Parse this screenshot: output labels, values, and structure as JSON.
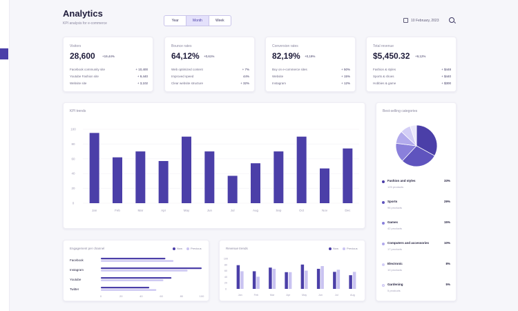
{
  "header": {
    "title": "Analytics",
    "subtitle": "KPI analysis for e-commerce",
    "periods": [
      "Year",
      "Month",
      "Week"
    ],
    "active_period": "Month",
    "date": "10 February, 2023"
  },
  "kpis": [
    {
      "label": "Visitors",
      "value": "28,600",
      "delta": "+19,44%",
      "rows": [
        {
          "label": "Facebook community site",
          "value": "+ 10,400"
        },
        {
          "label": "Youtube Fashion site",
          "value": "+ 9,440"
        },
        {
          "label": "Website site",
          "value": "+ 3,102"
        }
      ]
    },
    {
      "label": "Bounce rates",
      "value": "64,12%",
      "delta": "+0,61%",
      "rows": [
        {
          "label": "Web optimized content",
          "value": "+ 7%"
        },
        {
          "label": "Improved speed",
          "value": "44%"
        },
        {
          "label": "Clear website structure",
          "value": "+ 32%"
        }
      ]
    },
    {
      "label": "Conversion rates",
      "value": "82,19%",
      "delta": "+0,19%",
      "rows": [
        {
          "label": "Buy on e-commerce sites",
          "value": "+ 50%"
        },
        {
          "label": "Website",
          "value": "+ 15%"
        },
        {
          "label": "Instagram",
          "value": "+ 12%"
        }
      ]
    },
    {
      "label": "Total revenue",
      "value": "$5,450.32",
      "delta": "+9,12%",
      "rows": [
        {
          "label": "Fashion & styles",
          "value": "+ $448"
        },
        {
          "label": "Sports & shoes",
          "value": "+ $440"
        },
        {
          "label": "Hobbies & game",
          "value": "+ $300"
        }
      ]
    }
  ],
  "kpi_chart": {
    "title": "KPI trends",
    "yticks": [
      "100",
      "80",
      "60",
      "40",
      "20",
      "0"
    ],
    "categories": [
      "Jan",
      "Feb",
      "Mar",
      "Apr",
      "May",
      "Jun",
      "Jul",
      "Aug",
      "Sep",
      "Oct",
      "Nov",
      "Dec"
    ],
    "values": [
      95,
      62,
      70,
      57,
      90,
      70,
      37,
      54,
      70,
      90,
      47,
      74
    ],
    "ylim": [
      0,
      100
    ],
    "color": "#4b3fa8"
  },
  "categories_panel": {
    "title": "Best-selling categories",
    "pie": [
      {
        "share": 33,
        "color": "#4b3fa8"
      },
      {
        "share": 29,
        "color": "#5f54be"
      },
      {
        "share": 15,
        "color": "#8a80db"
      },
      {
        "share": 10,
        "color": "#b2aaec"
      },
      {
        "share": 8,
        "color": "#d3cef6"
      },
      {
        "share": 5,
        "color": "#ebe8fb"
      }
    ],
    "items": [
      {
        "name": "Fashion and styles",
        "sub": "125 products",
        "pct": "33%"
      },
      {
        "name": "Sports",
        "sub": "96 products",
        "pct": "29%"
      },
      {
        "name": "Games",
        "sub": "42 products",
        "pct": "15%"
      },
      {
        "name": "Computers and accessories",
        "sub": "17 products",
        "pct": "10%"
      },
      {
        "name": "Electronic",
        "sub": "10 products",
        "pct": "8%"
      },
      {
        "name": "Gardening",
        "sub": "5 products",
        "pct": "5%"
      }
    ]
  },
  "engagement": {
    "title": "Engagement per channel",
    "legend": [
      "Now",
      "Previous"
    ],
    "channels": [
      "Facebook",
      "Instagram",
      "Youtube",
      "Twitter"
    ],
    "now": [
      0.64,
      1.0,
      0.7,
      0.48
    ],
    "previous": [
      0.72,
      0.86,
      0.62,
      0.55
    ],
    "xticks": [
      "0",
      "20",
      "40",
      "60",
      "80",
      "100"
    ],
    "color_now": "#4b3fa8",
    "color_prev": "#c9c3f1"
  },
  "revenue_trends": {
    "title": "Revenue trends",
    "legend": [
      "Now",
      "Previous"
    ],
    "categories": [
      "Jan",
      "Feb",
      "Mar",
      "Apr",
      "May",
      "Jun",
      "Jul",
      "Aug"
    ],
    "now": [
      78,
      58,
      70,
      55,
      80,
      66,
      56,
      45
    ],
    "previous": [
      58,
      40,
      66,
      55,
      60,
      75,
      63,
      56
    ],
    "yticks": [
      "100",
      "80",
      "60",
      "40",
      "20",
      "0"
    ],
    "ylim": [
      0,
      100
    ],
    "color_now": "#4b3fa8",
    "color_prev": "#c9c3f1"
  }
}
